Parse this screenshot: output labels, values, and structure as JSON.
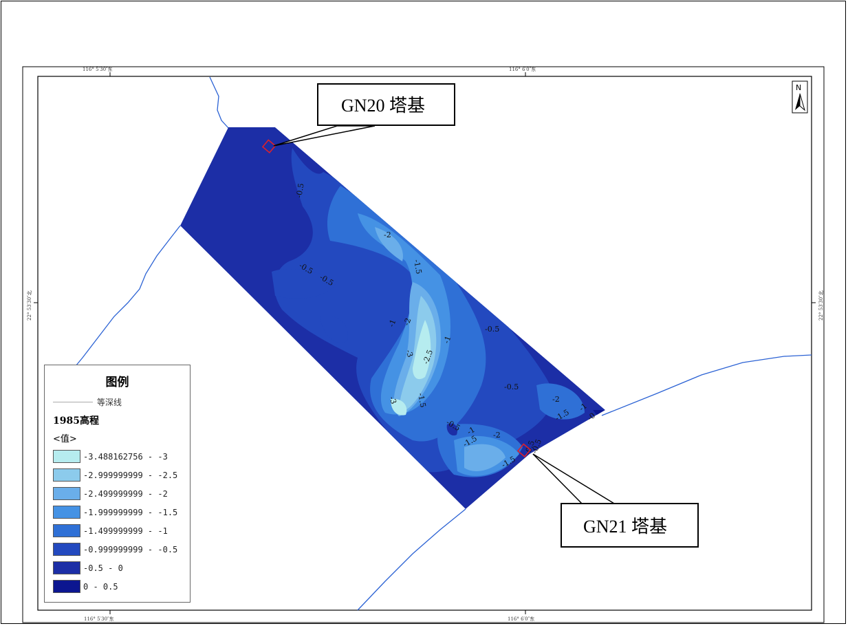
{
  "coords": {
    "top_left": "116° 5′30″东",
    "top_right": "116° 6′0″东",
    "bottom_left": "116° 5′30″东",
    "bottom_right": "116° 6′0″东",
    "left_lat": "22° 53′30″北",
    "right_lat": "22° 53′30″北"
  },
  "north_arrow": {
    "letter": "N"
  },
  "callouts": {
    "gn20": "GN20 塔基",
    "gn21": "GN21 塔基"
  },
  "contour_labels": [
    "-0.5",
    "-2",
    "-1.5",
    "-0.5",
    "-0.5",
    "-1",
    "-2",
    "-3",
    "-2.5",
    "-1",
    "-0.5",
    "-3",
    "-1.5",
    "-0.5",
    "-0.5",
    "-1.5",
    "-1",
    "-2",
    "-1.5",
    "-0.5",
    "-0.5",
    "-2",
    "-1.5",
    "-1",
    "-0"
  ],
  "legend": {
    "title": "图例",
    "contour_label": "等深线",
    "layer_name": "1985高程",
    "field_name": "<值>",
    "classes": [
      {
        "label": "-3.488162756 - -3",
        "color": "#b6ecef"
      },
      {
        "label": "-2.999999999 - -2.5",
        "color": "#8ccbec"
      },
      {
        "label": "-2.499999999 - -2",
        "color": "#6aaeea"
      },
      {
        "label": "-1.999999999 - -1.5",
        "color": "#4592e4"
      },
      {
        "label": "-1.499999999 - -1",
        "color": "#2f70d6"
      },
      {
        "label": "-0.999999999 - -0.5",
        "color": "#2349bf"
      },
      {
        "label": "-0.5 - 0",
        "color": "#1c2ea6"
      },
      {
        "label": "0 - 0.5",
        "color": "#0c1690"
      }
    ]
  },
  "colors": {
    "river": "#2b62d4",
    "marker": "#e0202a"
  }
}
